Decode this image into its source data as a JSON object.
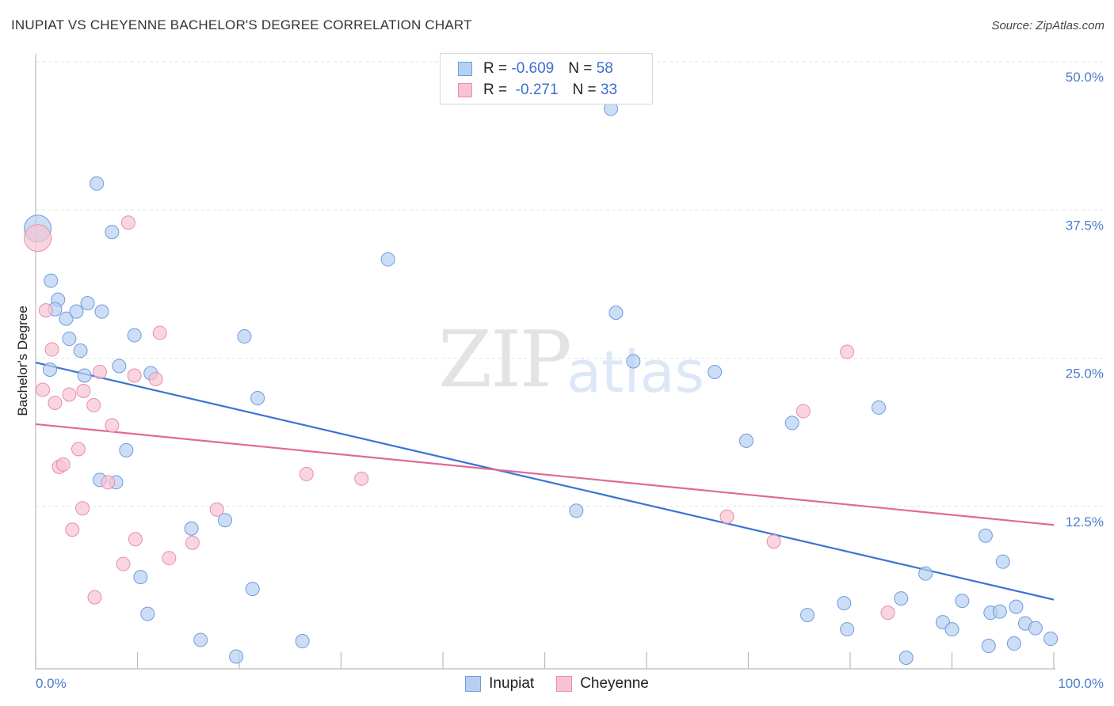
{
  "title": "INUPIAT VS CHEYENNE BACHELOR'S DEGREE CORRELATION CHART",
  "source": "Source: ZipAtlas.com",
  "watermark": {
    "zip": "ZIP",
    "atlas": "atlas"
  },
  "legend": {
    "rows": [
      {
        "series": "Inupiat",
        "r_label": "R = ",
        "r_value": "-0.609",
        "n_label": "N = ",
        "n_value": "58"
      },
      {
        "series": "Cheyenne",
        "r_label": "R = ",
        "r_value": " -0.271",
        "n_label": "N = ",
        "n_value": "33"
      }
    ]
  },
  "colors": {
    "inupiat_fill": "#b7d0f2",
    "inupiat_stroke": "#6f9bdc",
    "inupiat_line": "#3a74d4",
    "cheyenne_fill": "#f7c3d3",
    "cheyenne_stroke": "#e88eaa",
    "cheyenne_line": "#e06a94",
    "tick_text": "#4d7cc9"
  },
  "chart_data": {
    "type": "scatter",
    "title": "INUPIAT VS CHEYENNE BACHELOR'S DEGREE CORRELATION CHART",
    "xlabel": "",
    "ylabel": "Bachelor's Degree",
    "xlim": [
      0,
      100
    ],
    "ylim": [
      0,
      52
    ],
    "x_tick_labels": [
      {
        "value": 0,
        "label": "0.0%"
      },
      {
        "value": 100,
        "label": "100.0%"
      }
    ],
    "y_tick_labels": [
      {
        "value": 12.5,
        "label": "12.5%"
      },
      {
        "value": 25,
        "label": "25.0%"
      },
      {
        "value": 37.5,
        "label": "37.5%"
      },
      {
        "value": 50,
        "label": "50.0%"
      }
    ],
    "series": [
      {
        "name": "Inupiat",
        "trend": {
          "x": [
            0,
            100
          ],
          "y": [
            25.9,
            5.9
          ]
        },
        "points": [
          {
            "x": 0.2,
            "y": 37.2,
            "big": true
          },
          {
            "x": 6.0,
            "y": 41.0
          },
          {
            "x": 7.5,
            "y": 36.9
          },
          {
            "x": 1.5,
            "y": 32.8
          },
          {
            "x": 2.2,
            "y": 31.2
          },
          {
            "x": 1.9,
            "y": 30.4
          },
          {
            "x": 3.0,
            "y": 29.6
          },
          {
            "x": 4.0,
            "y": 30.2
          },
          {
            "x": 5.1,
            "y": 30.9
          },
          {
            "x": 6.5,
            "y": 30.2
          },
          {
            "x": 3.3,
            "y": 27.9
          },
          {
            "x": 4.4,
            "y": 26.9
          },
          {
            "x": 1.4,
            "y": 25.3
          },
          {
            "x": 4.8,
            "y": 24.8
          },
          {
            "x": 8.2,
            "y": 25.6
          },
          {
            "x": 9.7,
            "y": 28.2
          },
          {
            "x": 11.3,
            "y": 25.0
          },
          {
            "x": 20.5,
            "y": 28.1
          },
          {
            "x": 21.8,
            "y": 22.9
          },
          {
            "x": 34.6,
            "y": 34.6
          },
          {
            "x": 56.5,
            "y": 47.3
          },
          {
            "x": 57.0,
            "y": 30.1
          },
          {
            "x": 58.7,
            "y": 26.0
          },
          {
            "x": 66.7,
            "y": 25.1
          },
          {
            "x": 69.8,
            "y": 19.3
          },
          {
            "x": 74.3,
            "y": 20.8
          },
          {
            "x": 82.8,
            "y": 22.1
          },
          {
            "x": 8.9,
            "y": 18.5
          },
          {
            "x": 6.3,
            "y": 16.0
          },
          {
            "x": 7.9,
            "y": 15.8
          },
          {
            "x": 53.1,
            "y": 13.4
          },
          {
            "x": 15.3,
            "y": 11.9
          },
          {
            "x": 18.6,
            "y": 12.6
          },
          {
            "x": 10.3,
            "y": 7.8
          },
          {
            "x": 21.3,
            "y": 6.8
          },
          {
            "x": 11.0,
            "y": 4.7
          },
          {
            "x": 16.2,
            "y": 2.5
          },
          {
            "x": 26.2,
            "y": 2.4
          },
          {
            "x": 19.7,
            "y": 1.1
          },
          {
            "x": 75.8,
            "y": 4.6
          },
          {
            "x": 79.4,
            "y": 5.6
          },
          {
            "x": 79.7,
            "y": 3.4
          },
          {
            "x": 85.0,
            "y": 6.0
          },
          {
            "x": 85.5,
            "y": 1.0
          },
          {
            "x": 87.4,
            "y": 8.1
          },
          {
            "x": 89.1,
            "y": 4.0
          },
          {
            "x": 90.0,
            "y": 3.4
          },
          {
            "x": 91.0,
            "y": 5.8
          },
          {
            "x": 93.3,
            "y": 11.3
          },
          {
            "x": 93.6,
            "y": 2.0
          },
          {
            "x": 93.8,
            "y": 4.8
          },
          {
            "x": 94.7,
            "y": 4.9
          },
          {
            "x": 95.0,
            "y": 9.1
          },
          {
            "x": 96.1,
            "y": 2.2
          },
          {
            "x": 96.3,
            "y": 5.3
          },
          {
            "x": 97.2,
            "y": 3.9
          },
          {
            "x": 98.2,
            "y": 3.5
          },
          {
            "x": 99.7,
            "y": 2.6
          }
        ]
      },
      {
        "name": "Cheyenne",
        "trend": {
          "x": [
            0,
            100
          ],
          "y": [
            20.7,
            12.2
          ]
        },
        "points": [
          {
            "x": 0.2,
            "y": 36.4,
            "big": true
          },
          {
            "x": 9.1,
            "y": 37.7
          },
          {
            "x": 1.0,
            "y": 30.3
          },
          {
            "x": 1.6,
            "y": 27.0
          },
          {
            "x": 12.2,
            "y": 28.4
          },
          {
            "x": 0.7,
            "y": 23.6
          },
          {
            "x": 1.9,
            "y": 22.5
          },
          {
            "x": 3.3,
            "y": 23.2
          },
          {
            "x": 4.7,
            "y": 23.5
          },
          {
            "x": 5.7,
            "y": 22.3
          },
          {
            "x": 6.3,
            "y": 25.1
          },
          {
            "x": 9.7,
            "y": 24.8
          },
          {
            "x": 11.8,
            "y": 24.5
          },
          {
            "x": 7.5,
            "y": 20.6
          },
          {
            "x": 4.2,
            "y": 18.6
          },
          {
            "x": 2.3,
            "y": 17.1
          },
          {
            "x": 2.7,
            "y": 17.3
          },
          {
            "x": 7.1,
            "y": 15.8
          },
          {
            "x": 26.6,
            "y": 16.5
          },
          {
            "x": 32.0,
            "y": 16.1
          },
          {
            "x": 75.4,
            "y": 21.8
          },
          {
            "x": 79.7,
            "y": 26.8
          },
          {
            "x": 4.6,
            "y": 13.6
          },
          {
            "x": 17.8,
            "y": 13.5
          },
          {
            "x": 67.9,
            "y": 12.9
          },
          {
            "x": 3.6,
            "y": 11.8
          },
          {
            "x": 9.8,
            "y": 11.0
          },
          {
            "x": 15.4,
            "y": 10.7
          },
          {
            "x": 13.1,
            "y": 9.4
          },
          {
            "x": 8.6,
            "y": 8.9
          },
          {
            "x": 72.5,
            "y": 10.8
          },
          {
            "x": 5.8,
            "y": 6.1
          },
          {
            "x": 83.7,
            "y": 4.8
          }
        ]
      }
    ]
  }
}
